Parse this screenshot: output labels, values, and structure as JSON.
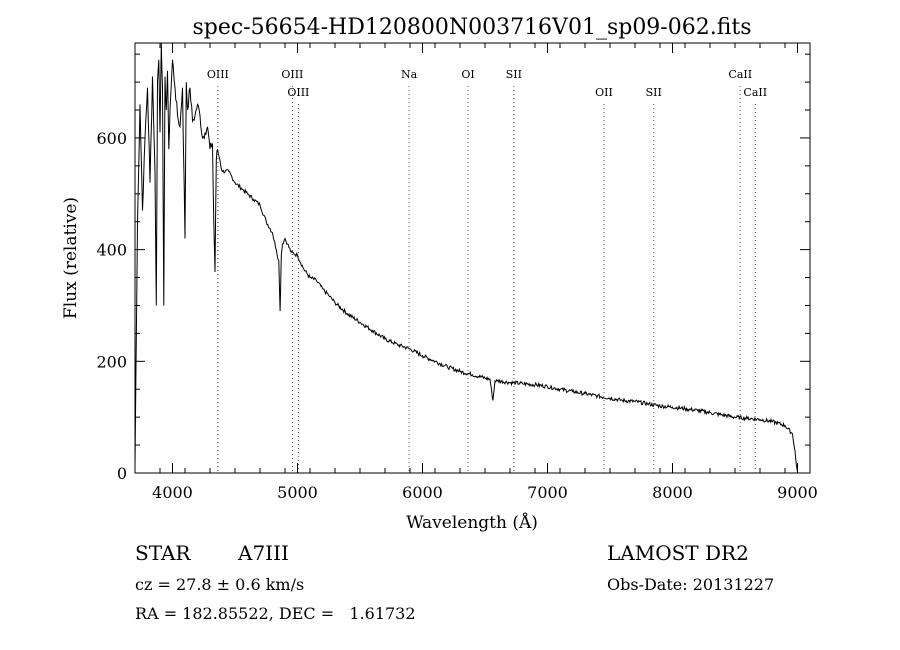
{
  "chart_data": {
    "type": "line",
    "title": "spec-56654-HD120800N003716V01_sp09-062.fits",
    "xlabel": "Wavelength (Å)",
    "ylabel": "Flux (relative)",
    "xlim": [
      3700,
      9100
    ],
    "ylim": [
      0,
      770
    ],
    "x_ticks": [
      4000,
      5000,
      6000,
      7000,
      8000,
      9000
    ],
    "y_ticks": [
      0,
      200,
      400,
      600
    ],
    "series": [
      {
        "x": [
          3700,
          3720,
          3740,
          3760,
          3780,
          3800,
          3820,
          3840,
          3860,
          3870,
          3880,
          3890,
          3900,
          3910,
          3920,
          3930,
          3940,
          3950,
          3960,
          3970,
          3980,
          4000,
          4020,
          4040,
          4060,
          4080,
          4100,
          4110,
          4120,
          4140,
          4160,
          4180,
          4200,
          4220,
          4240,
          4260,
          4280,
          4300,
          4320,
          4330,
          4340,
          4350,
          4360,
          4380,
          4400,
          4450,
          4500,
          4550,
          4600,
          4650,
          4700,
          4750,
          4800,
          4830,
          4850,
          4861,
          4870,
          4880,
          4900,
          4920,
          4950,
          5000,
          5050,
          5100,
          5150,
          5200,
          5250,
          5300,
          5400,
          5500,
          5600,
          5700,
          5800,
          5900,
          6000,
          6100,
          6200,
          6300,
          6400,
          6500,
          6540,
          6563,
          6580,
          6600,
          6700,
          6800,
          6900,
          7000,
          7100,
          7200,
          7300,
          7400,
          7500,
          7600,
          7700,
          7800,
          7900,
          8000,
          8100,
          8200,
          8300,
          8400,
          8500,
          8600,
          8700,
          8800,
          8900,
          8960,
          8980,
          8990,
          9000
        ],
        "y": [
          10,
          450,
          660,
          470,
          600,
          690,
          520,
          710,
          540,
          300,
          700,
          740,
          610,
          770,
          690,
          300,
          710,
          650,
          720,
          580,
          650,
          740,
          690,
          640,
          620,
          690,
          420,
          700,
          650,
          690,
          630,
          640,
          660,
          640,
          600,
          610,
          620,
          580,
          590,
          450,
          360,
          560,
          580,
          560,
          540,
          540,
          520,
          510,
          500,
          490,
          480,
          450,
          430,
          400,
          380,
          290,
          390,
          410,
          420,
          410,
          395,
          390,
          365,
          350,
          345,
          330,
          318,
          305,
          285,
          270,
          255,
          240,
          230,
          222,
          210,
          200,
          190,
          182,
          176,
          170,
          168,
          130,
          165,
          165,
          162,
          160,
          158,
          155,
          150,
          146,
          142,
          138,
          134,
          130,
          128,
          124,
          120,
          118,
          115,
          112,
          108,
          104,
          100,
          98,
          96,
          92,
          85,
          70,
          40,
          15,
          2
        ]
      }
    ],
    "line_markers": [
      {
        "label": "OIII",
        "wavelength": 4363,
        "row": "top"
      },
      {
        "label": "OIII",
        "wavelength": 4959,
        "row": "top"
      },
      {
        "label": "OIII",
        "wavelength": 5007,
        "row": "bottom"
      },
      {
        "label": "Na",
        "wavelength": 5893,
        "row": "top"
      },
      {
        "label": "OI",
        "wavelength": 6364,
        "row": "top"
      },
      {
        "label": "SII",
        "wavelength": 6731,
        "row": "top"
      },
      {
        "label": "OII",
        "wavelength": 7452,
        "row": "bottom"
      },
      {
        "label": "SII",
        "wavelength": 7850,
        "row": "bottom"
      },
      {
        "label": "CaII",
        "wavelength": 8542,
        "row": "top"
      },
      {
        "label": "CaII",
        "wavelength": 8662,
        "row": "bottom"
      }
    ],
    "grid": false,
    "legend": "none"
  },
  "footer": {
    "object_type": "STAR",
    "spectral_class": "A7III",
    "survey": "LAMOST DR2",
    "redshift": "cz = 27.8 ± 0.6 km/s",
    "obs_date": "Obs-Date: 20131227",
    "coords": "RA = 182.85522, DEC =   1.61732"
  }
}
